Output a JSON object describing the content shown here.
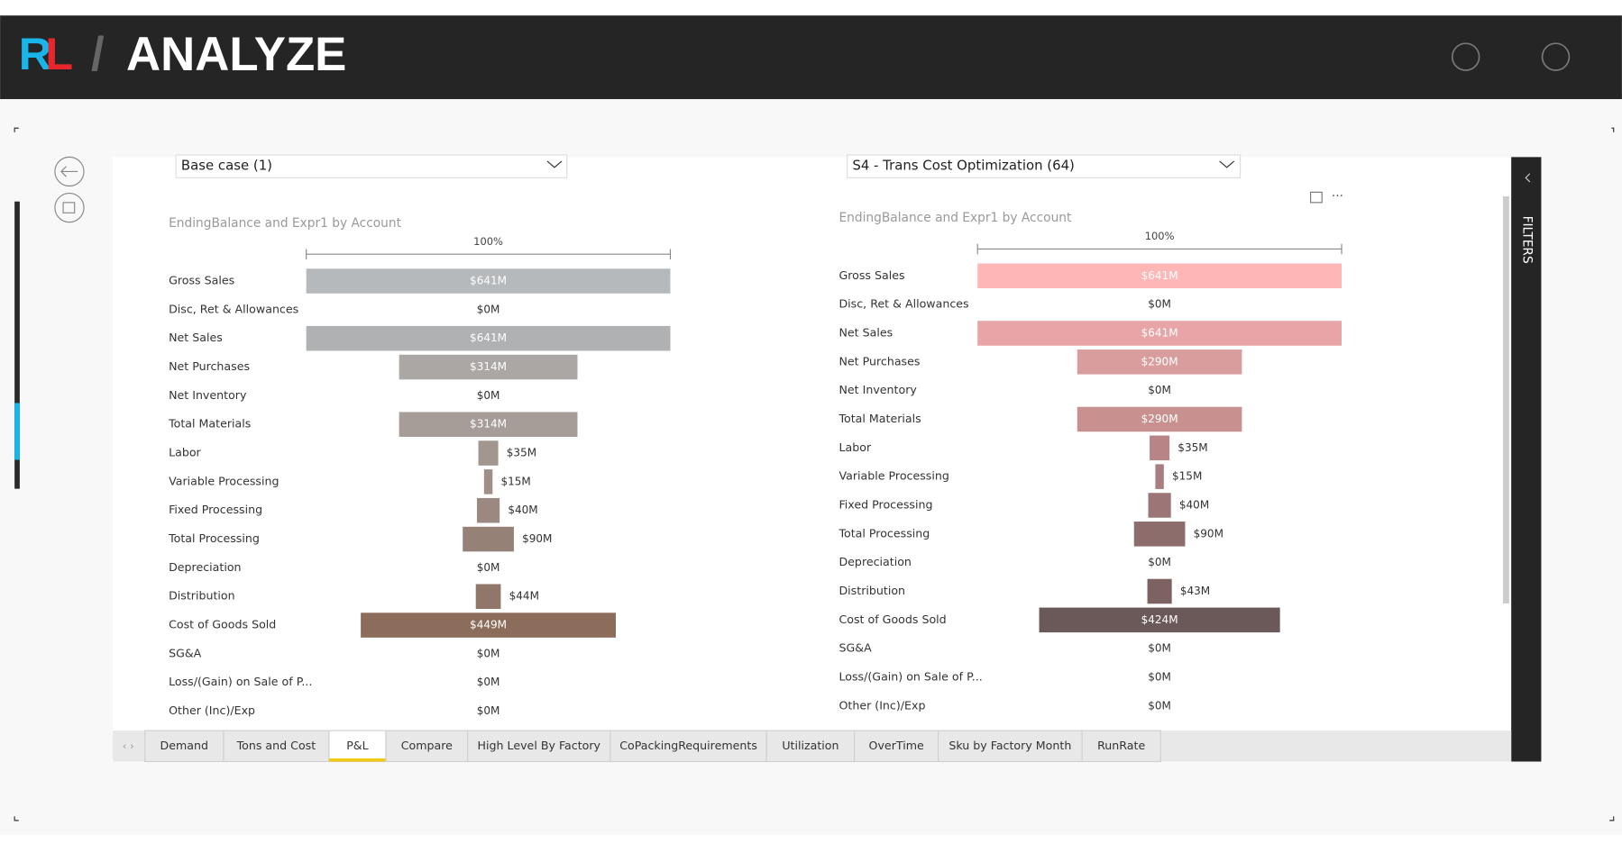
{
  "header": {
    "logo": [
      "R",
      "L"
    ],
    "title": "ANALYZE"
  },
  "dropdowns": [
    "Base case (1)",
    "S4 - Trans Cost Optimization (64)"
  ],
  "filters_label": "FILTERS",
  "tabs": [
    "Demand",
    "Tons and Cost",
    "P&L",
    "Compare",
    "High Level By Factory",
    "CoPackingRequirements",
    "Utilization",
    "OverTime",
    "Sku by Factory Month",
    "RunRate"
  ],
  "active_tab": 2,
  "chart_data": [
    {
      "type": "funnel",
      "title": "EndingBalance and Expr1 by Account",
      "scale_label": "100%",
      "categories": [
        "Gross Sales",
        "Disc, Ret & Allowances",
        "Net Sales",
        "Net Purchases",
        "Net Inventory",
        "Total Materials",
        "Labor",
        "Variable Processing",
        "Fixed Processing",
        "Total Processing",
        "Depreciation",
        "Distribution",
        "Cost of Goods Sold",
        "SG&A",
        "Loss/(Gain) on Sale of P...",
        "Other (Inc)/Exp"
      ],
      "values": [
        641,
        0,
        641,
        314,
        0,
        314,
        35,
        15,
        40,
        90,
        0,
        44,
        449,
        0,
        0,
        0
      ],
      "value_labels": [
        "$641M",
        "$0M",
        "$641M",
        "$314M",
        "$0M",
        "$314M",
        "$35M",
        "$15M",
        "$40M",
        "$90M",
        "$0M",
        "$44M",
        "$449M",
        "$0M",
        "$0M",
        "$0M"
      ],
      "colors": [
        "#b5b9bc",
        "#b3b4b5",
        "#b0b1b2",
        "#aba7a5",
        "#a8a29f",
        "#a69d99",
        "#a2968f",
        "#9f8f87",
        "#9b8880",
        "#968176",
        "#937b6f",
        "#917769",
        "#8c6c5b",
        "#8a6856",
        "#886452",
        "#86604e"
      ]
    },
    {
      "type": "funnel",
      "title": "EndingBalance and Expr1 by Account",
      "scale_label": "100%",
      "categories": [
        "Gross Sales",
        "Disc, Ret & Allowances",
        "Net Sales",
        "Net Purchases",
        "Net Inventory",
        "Total Materials",
        "Labor",
        "Variable Processing",
        "Fixed Processing",
        "Total Processing",
        "Depreciation",
        "Distribution",
        "Cost of Goods Sold",
        "SG&A",
        "Loss/(Gain) on Sale of P...",
        "Other (Inc)/Exp"
      ],
      "values": [
        641,
        0,
        641,
        290,
        0,
        290,
        35,
        15,
        40,
        90,
        0,
        43,
        424,
        0,
        0,
        0
      ],
      "value_labels": [
        "$641M",
        "$0M",
        "$641M",
        "$290M",
        "$0M",
        "$290M",
        "$35M",
        "$15M",
        "$40M",
        "$90M",
        "$0M",
        "$43M",
        "$424M",
        "$0M",
        "$0M",
        "$0M"
      ],
      "colors": [
        "#ffb6b7",
        "#f0aaac",
        "#e8a4a6",
        "#d99d9e",
        "#d19798",
        "#c99090",
        "#b88486",
        "#a97e80",
        "#9c7676",
        "#8d6c6c",
        "#856666",
        "#7d6262",
        "#6b5959",
        "#635252",
        "#5b4c4c",
        "#544646"
      ]
    }
  ]
}
